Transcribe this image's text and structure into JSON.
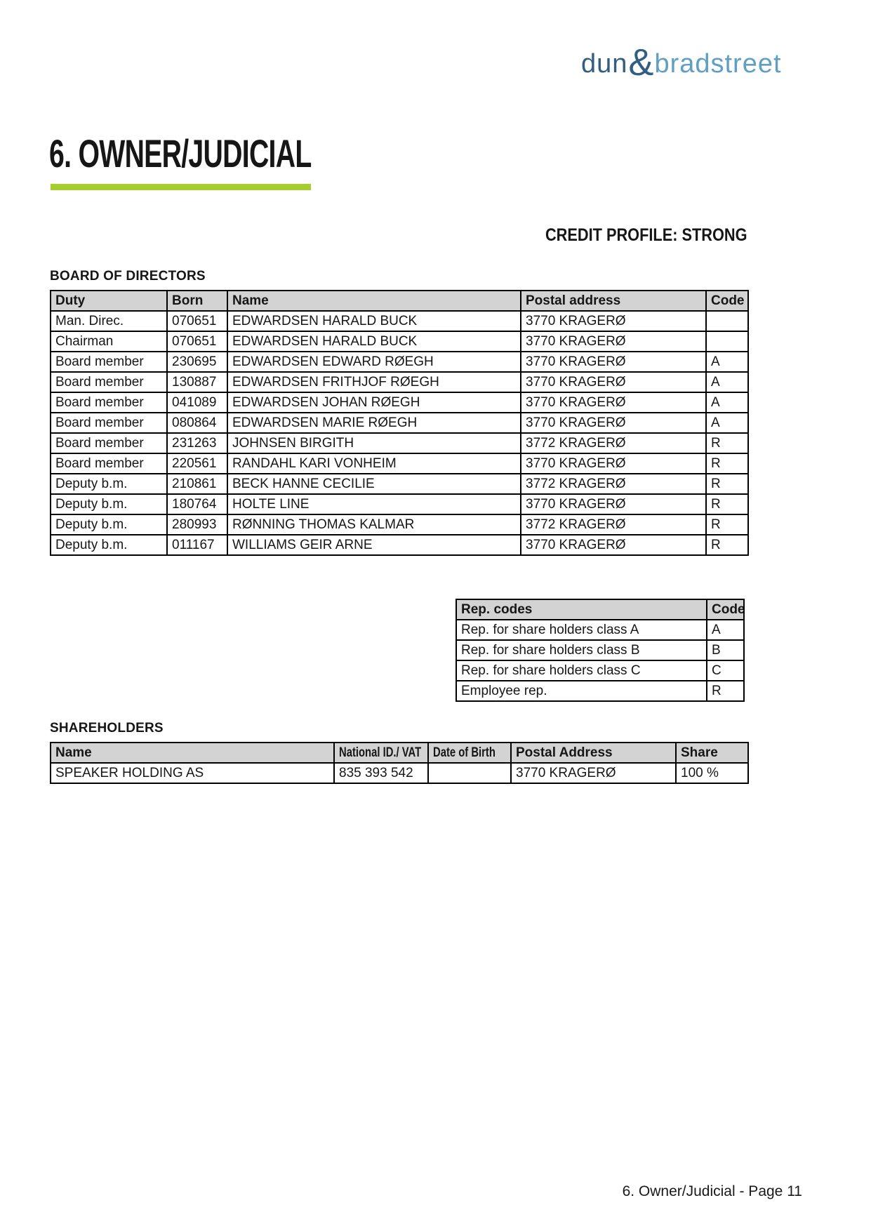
{
  "logo": {
    "dun": "dun",
    "ampersand": "&",
    "bradstreet": "bradstreet"
  },
  "title": "6. OWNER/JUDICIAL",
  "credit_profile": "CREDIT PROFILE: STRONG",
  "colors": {
    "accent_green": "#a4ce2c",
    "logo_dark_blue": "#315e82",
    "logo_light_blue": "#5f9fc4",
    "table_header_gray": "#d3d3d3"
  },
  "board": {
    "heading": "BOARD OF DIRECTORS",
    "columns": [
      "Duty",
      "Born",
      "Name",
      "Postal address",
      "Code"
    ],
    "rows": [
      [
        "Man. Direc.",
        "070651",
        "EDWARDSEN HARALD BUCK",
        "3770 KRAGERØ",
        ""
      ],
      [
        "Chairman",
        "070651",
        "EDWARDSEN HARALD BUCK",
        "3770 KRAGERØ",
        ""
      ],
      [
        "Board member",
        "230695",
        "EDWARDSEN EDWARD RØEGH",
        "3770 KRAGERØ",
        "A"
      ],
      [
        "Board member",
        "130887",
        "EDWARDSEN FRITHJOF RØEGH",
        "3770 KRAGERØ",
        "A"
      ],
      [
        "Board member",
        "041089",
        "EDWARDSEN JOHAN RØEGH",
        "3770 KRAGERØ",
        "A"
      ],
      [
        "Board member",
        "080864",
        "EDWARDSEN MARIE RØEGH",
        "3770 KRAGERØ",
        "A"
      ],
      [
        "Board member",
        "231263",
        "JOHNSEN BIRGITH",
        "3772 KRAGERØ",
        "R"
      ],
      [
        "Board member",
        "220561",
        "RANDAHL KARI VONHEIM",
        "3770 KRAGERØ",
        "R"
      ],
      [
        "Deputy b.m.",
        "210861",
        "BECK HANNE CECILIE",
        "3772 KRAGERØ",
        "R"
      ],
      [
        "Deputy b.m.",
        "180764",
        "HOLTE LINE",
        "3770 KRAGERØ",
        "R"
      ],
      [
        "Deputy b.m.",
        "280993",
        "RØNNING THOMAS KALMAR",
        "3772 KRAGERØ",
        "R"
      ],
      [
        "Deputy b.m.",
        "011167",
        "WILLIAMS GEIR ARNE",
        "3770 KRAGERØ",
        "R"
      ]
    ]
  },
  "rep_codes": {
    "columns": [
      "Rep. codes",
      "Code"
    ],
    "rows": [
      [
        "Rep. for share holders class A",
        "A"
      ],
      [
        "Rep. for share holders class B",
        "B"
      ],
      [
        "Rep. for share holders class C",
        "C"
      ],
      [
        "Employee rep.",
        "R"
      ]
    ]
  },
  "shareholders": {
    "heading": "SHAREHOLDERS",
    "columns": [
      "Name",
      "National ID./ VAT",
      "Date of Birth",
      "Postal Address",
      "Share"
    ],
    "rows": [
      [
        "SPEAKER HOLDING AS",
        "835 393 542",
        "",
        "3770 KRAGERØ",
        "100 %"
      ]
    ]
  },
  "footer": "6. Owner/Judicial - Page 11"
}
